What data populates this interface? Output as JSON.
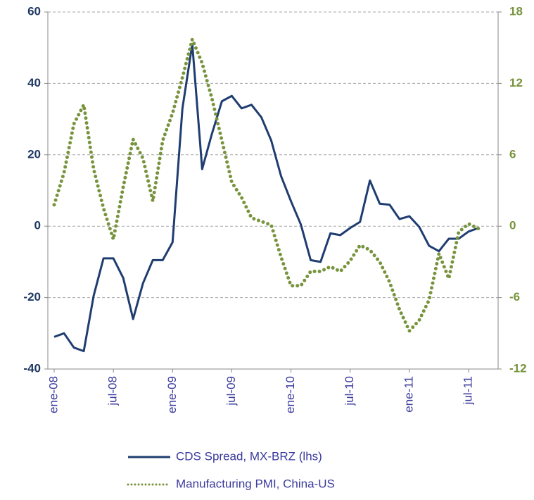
{
  "chart_data": {
    "type": "line",
    "categories": [
      "ene-08",
      null,
      null,
      null,
      null,
      null,
      "jul-08",
      null,
      null,
      null,
      null,
      null,
      "ene-09",
      null,
      null,
      null,
      null,
      null,
      "jul-09",
      null,
      null,
      null,
      null,
      null,
      "ene-10",
      null,
      null,
      null,
      null,
      null,
      "jul-10",
      null,
      null,
      null,
      null,
      null,
      "ene-11",
      null,
      null,
      null,
      null,
      null,
      "jul-11",
      null
    ],
    "series": [
      {
        "name": "CDS Spread, MX-BRZ (lhs)",
        "color": "#1f3d70",
        "style": "solid",
        "values": [
          -31,
          -30,
          -34,
          -35,
          -19.5,
          -9,
          -9,
          -14.5,
          -26,
          -16,
          -9.5,
          -9.5,
          -4.5,
          33,
          51,
          16,
          26,
          35,
          36.5,
          33,
          34,
          30.5,
          24,
          14,
          7,
          0.5,
          -9.5,
          -10,
          -2,
          -2.5,
          -0.5,
          1.2,
          12.8,
          6.3,
          6,
          2,
          2.8,
          -0.2,
          -5.5,
          -7,
          -3.5,
          -3.5,
          -1.5,
          -0.5
        ]
      },
      {
        "name": "Manufacturing PMI, China-US",
        "color": "#77933c",
        "style": "dotted",
        "axis": "y2",
        "values": [
          1.8,
          4.5,
          8.6,
          10.2,
          4.8,
          1.5,
          -1.1,
          3.3,
          7.3,
          5.7,
          2.1,
          7.2,
          9.5,
          12.5,
          15.7,
          13.7,
          10.7,
          7.2,
          3.7,
          2.4,
          0.7,
          0.4,
          0.1,
          -2.6,
          -5,
          -5,
          -3.8,
          -3.8,
          -3.4,
          -3.8,
          -2.9,
          -1.6,
          -2,
          -3,
          -4.7,
          -7,
          -8.8,
          -7.9,
          -6.2,
          -2.3,
          -4.4,
          -0.5,
          0.2,
          -0.2
        ]
      }
    ],
    "ylim": [
      -40,
      60
    ],
    "yticks": [
      -40,
      -20,
      0,
      20,
      40,
      60
    ],
    "y2lim": [
      -12,
      18
    ],
    "y2ticks": [
      -12,
      -6,
      0,
      6,
      12,
      18
    ],
    "ycolor": "#1f3864",
    "y2color": "#77933c",
    "xcolor": "#3a3a9c",
    "grid": true
  }
}
